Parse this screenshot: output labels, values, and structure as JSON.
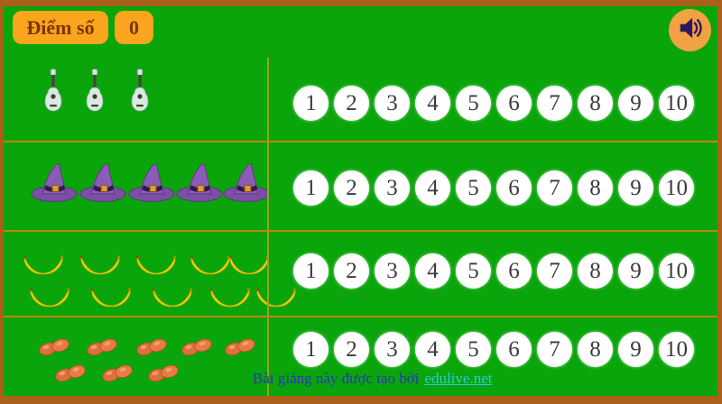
{
  "colors": {
    "bg": "#0aa50a",
    "frame": "#a9611a",
    "accent": "#f9a51d",
    "accent-text": "#7c3500",
    "speaker-bg": "#f2a243",
    "speaker-icon": "#2d1a5e",
    "circle-bg": "#ffffff",
    "num-color": "#3b3b3b",
    "line-h": "#c2830f",
    "line-v": "#93a51c",
    "footer-color": "#2a32c8",
    "link-color": "#25c9e8"
  },
  "score_panel": {
    "label": "Điểm số",
    "value": "0"
  },
  "audio_button": {
    "icon": "speaker-icon"
  },
  "rows": [
    {
      "name": "guitars",
      "object": "guitar",
      "count": 3,
      "numbers": [
        "1",
        "2",
        "3",
        "4",
        "5",
        "6",
        "7",
        "8",
        "9",
        "10"
      ]
    },
    {
      "name": "witch-hats",
      "object": "witch-hat",
      "count": 5,
      "numbers": [
        "1",
        "2",
        "3",
        "4",
        "5",
        "6",
        "7",
        "8",
        "9",
        "10"
      ]
    },
    {
      "name": "bananas",
      "object": "banana",
      "count": 10,
      "numbers": [
        "1",
        "2",
        "3",
        "4",
        "5",
        "6",
        "7",
        "8",
        "9",
        "10"
      ]
    },
    {
      "name": "peanuts",
      "object": "peanut",
      "count": 8,
      "numbers": [
        "1",
        "2",
        "3",
        "4",
        "5",
        "6",
        "7",
        "8",
        "9",
        "10"
      ]
    }
  ],
  "footer": {
    "text": "Bài giảng này được tạo bởi",
    "link_text": "edulive.net"
  }
}
